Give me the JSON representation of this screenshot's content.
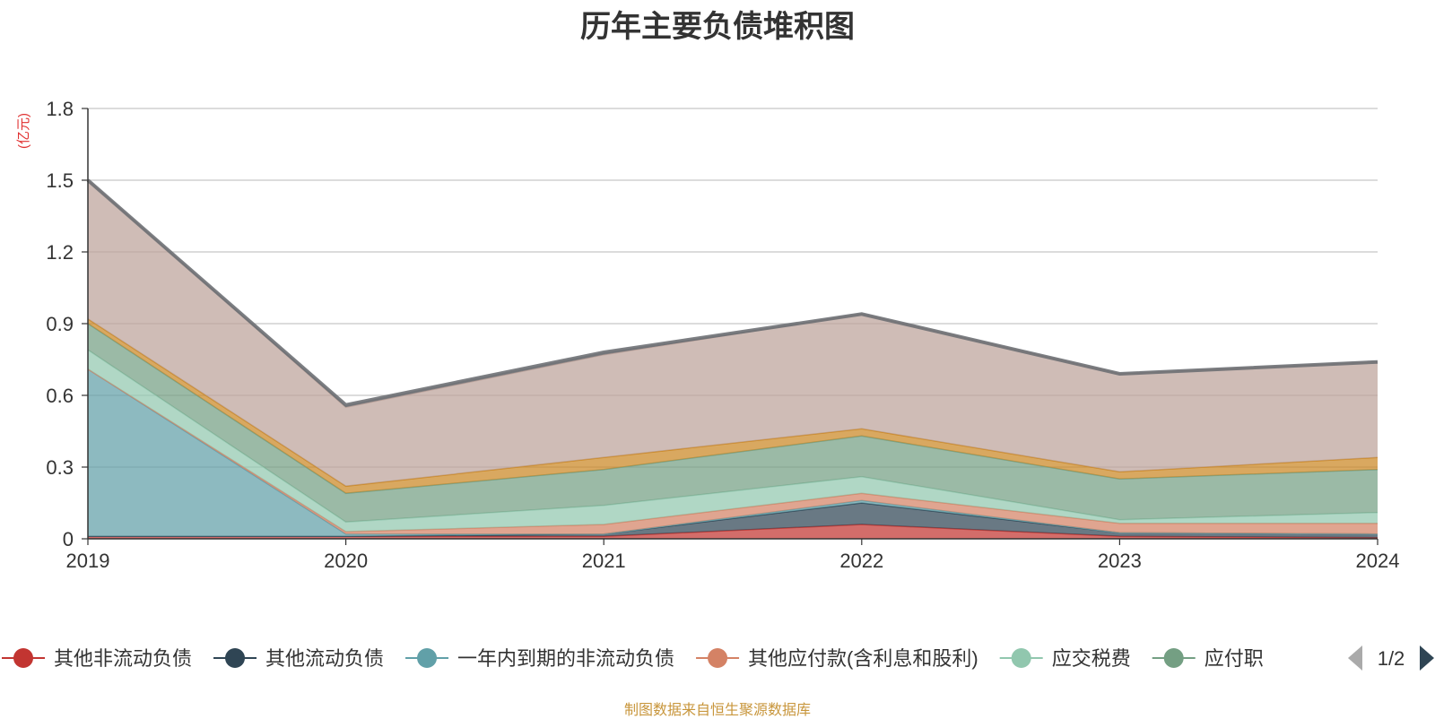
{
  "chart_data": {
    "type": "area",
    "stacked": true,
    "title": "历年主要负债堆积图",
    "ylabel": "(亿元)",
    "x": [
      "2019",
      "2020",
      "2021",
      "2022",
      "2023",
      "2024"
    ],
    "y_ticks": [
      "0",
      "0.3",
      "0.6",
      "0.9",
      "1.2",
      "1.5",
      "1.8"
    ],
    "ylim": [
      0,
      1.8
    ],
    "grid": true,
    "legend_position": "bottom",
    "series": [
      {
        "name": "其他非流动负债",
        "color": "#c23531",
        "values": [
          0.01,
          0.01,
          0.01,
          0.06,
          0.01,
          0.005
        ]
      },
      {
        "name": "其他流动负债",
        "color": "#2f4554",
        "values": [
          0.0,
          0.0,
          0.01,
          0.09,
          0.015,
          0.015
        ]
      },
      {
        "name": "一年内到期的非流动负债",
        "color": "#61a0a8",
        "values": [
          0.7,
          0.01,
          0.0,
          0.01,
          0.0,
          0.0
        ]
      },
      {
        "name": "其他应付款(含利息和股利)",
        "color": "#d48265",
        "values": [
          0.0,
          0.01,
          0.04,
          0.03,
          0.04,
          0.045
        ]
      },
      {
        "name": "应交税费",
        "color": "#91c7ae",
        "values": [
          0.08,
          0.04,
          0.08,
          0.07,
          0.015,
          0.045
        ]
      },
      {
        "name": "应付职工薪酬",
        "color": "#749f83",
        "values": [
          0.11,
          0.12,
          0.15,
          0.17,
          0.17,
          0.18
        ]
      },
      {
        "name": "",
        "color": "#ca8622",
        "values": [
          0.02,
          0.03,
          0.05,
          0.03,
          0.03,
          0.05
        ]
      },
      {
        "name": "",
        "color": "#bda29a",
        "values": [
          0.58,
          0.33,
          0.43,
          0.48,
          0.41,
          0.4
        ]
      },
      {
        "name": "",
        "color": "#6e7074",
        "values": [
          0.0,
          0.01,
          0.01,
          0.0,
          0.0,
          0.0
        ]
      }
    ]
  },
  "legend": {
    "items": [
      {
        "label": "其他非流动负债",
        "color": "#c23531"
      },
      {
        "label": "其他流动负债",
        "color": "#2f4554"
      },
      {
        "label": "一年内到期的非流动负债",
        "color": "#61a0a8"
      },
      {
        "label": "其他应付款(含利息和股利)",
        "color": "#d48265"
      },
      {
        "label": "应交税费",
        "color": "#91c7ae"
      },
      {
        "label": "应付职",
        "color": "#749f83"
      }
    ],
    "page_indicator": "1/2",
    "prev_color": "#aaaaaa",
    "next_color": "#2f4554"
  },
  "source_note": "制图数据来自恒生聚源数据库"
}
